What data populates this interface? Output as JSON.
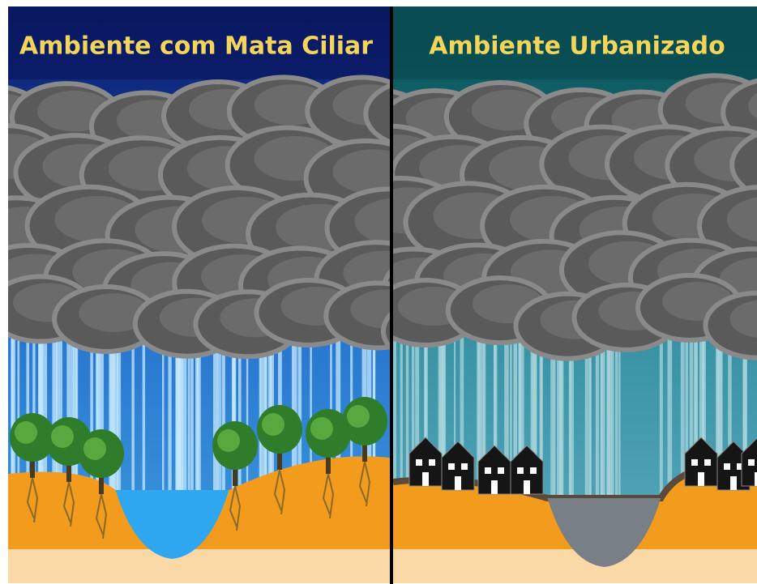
{
  "panels": [
    {
      "title": "Ambiente com Mata Ciliar"
    },
    {
      "title": "Ambiente Urbanizado"
    }
  ]
}
